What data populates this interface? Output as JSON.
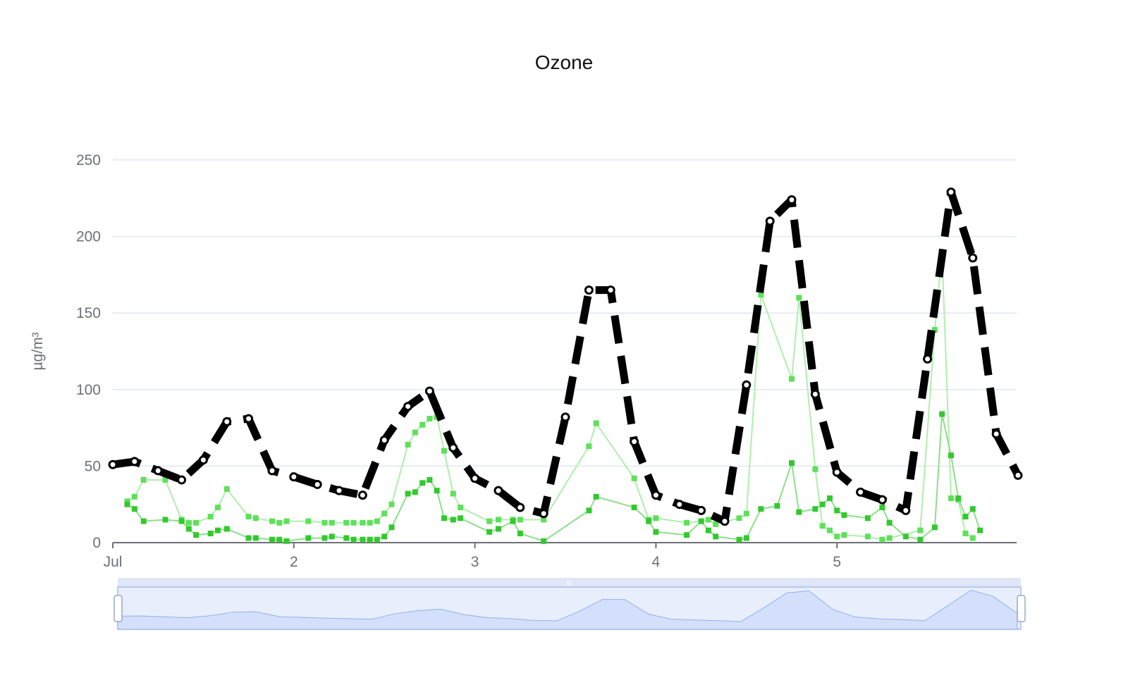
{
  "chart_data": {
    "type": "line",
    "title": "Ozone",
    "ylabel": "µg/m³",
    "xlabel": "",
    "ylim": [
      0,
      250
    ],
    "yticks": [
      0,
      50,
      100,
      150,
      200,
      250
    ],
    "xlim": [
      0,
      4.9
    ],
    "xticks": [
      {
        "x": 0,
        "label": "Jul"
      },
      {
        "x": 1,
        "label": "2"
      },
      {
        "x": 2,
        "label": "3"
      },
      {
        "x": 3,
        "label": "4"
      },
      {
        "x": 4,
        "label": "5"
      }
    ],
    "grid": true,
    "legend": "none",
    "zoom_slider": {
      "start_percent": 0,
      "end_percent": 100,
      "handle_glyph": "III"
    },
    "colors": {
      "main_line": "#000000",
      "series_light": "#aef0ab",
      "marker_light": "#5ee05a",
      "series_dark": "#8ce08a",
      "marker_dark": "#33c92e",
      "grid": "#e0e6f1",
      "slider_fill": "#d4e0fb",
      "slider_border": "#a9bde6"
    },
    "series": [
      {
        "style": "thick-dashed-black",
        "points": [
          [
            0,
            51
          ],
          [
            0.12,
            53
          ],
          [
            0.25,
            47
          ],
          [
            0.38,
            41
          ],
          [
            0.5,
            54
          ],
          [
            0.63,
            79
          ],
          [
            0.75,
            81
          ],
          [
            0.88,
            47
          ],
          [
            1,
            43
          ],
          [
            1.13,
            38
          ],
          [
            1.25,
            34
          ],
          [
            1.38,
            31
          ],
          [
            1.5,
            67
          ],
          [
            1.63,
            89
          ],
          [
            1.75,
            99
          ],
          [
            1.88,
            62
          ],
          [
            2,
            42
          ],
          [
            2.13,
            34
          ],
          [
            2.25,
            23
          ],
          [
            2.38,
            19
          ],
          [
            2.5,
            82
          ],
          [
            2.63,
            165
          ],
          [
            2.75,
            165
          ],
          [
            2.88,
            66
          ],
          [
            3,
            31
          ],
          [
            3.13,
            25
          ],
          [
            3.25,
            21
          ],
          [
            3.38,
            14
          ],
          [
            3.5,
            103
          ],
          [
            3.63,
            210
          ],
          [
            3.75,
            224
          ],
          [
            3.88,
            97
          ],
          [
            4,
            46
          ],
          [
            4.13,
            33
          ],
          [
            4.25,
            28
          ],
          [
            4.38,
            21
          ],
          [
            4.5,
            120
          ],
          [
            4.63,
            229
          ],
          [
            4.75,
            186
          ],
          [
            4.88,
            71
          ],
          [
            5,
            44
          ]
        ]
      },
      {
        "style": "light-green",
        "points": [
          [
            0.08,
            27
          ],
          [
            0.12,
            30
          ],
          [
            0.17,
            41
          ],
          [
            0.29,
            41
          ],
          [
            0.38,
            15
          ],
          [
            0.42,
            13
          ],
          [
            0.46,
            13
          ],
          [
            0.54,
            17
          ],
          [
            0.58,
            23
          ],
          [
            0.63,
            35
          ],
          [
            0.75,
            17
          ],
          [
            0.79,
            16
          ],
          [
            0.88,
            14
          ],
          [
            0.92,
            13
          ],
          [
            0.96,
            14
          ],
          [
            1.08,
            14
          ],
          [
            1.17,
            13
          ],
          [
            1.21,
            13
          ],
          [
            1.29,
            13
          ],
          [
            1.33,
            13
          ],
          [
            1.38,
            13
          ],
          [
            1.42,
            13
          ],
          [
            1.46,
            14
          ],
          [
            1.5,
            19
          ],
          [
            1.54,
            25
          ],
          [
            1.63,
            64
          ],
          [
            1.67,
            72
          ],
          [
            1.71,
            77
          ],
          [
            1.75,
            81
          ],
          [
            1.79,
            82
          ],
          [
            1.83,
            60
          ],
          [
            1.88,
            32
          ],
          [
            1.92,
            23
          ],
          [
            2.08,
            14
          ],
          [
            2.13,
            15
          ],
          [
            2.21,
            15
          ],
          [
            2.25,
            15
          ],
          [
            2.38,
            15
          ],
          [
            2.63,
            63
          ],
          [
            2.67,
            78
          ],
          [
            2.88,
            42
          ],
          [
            2.96,
            15
          ],
          [
            3,
            16
          ],
          [
            3.17,
            13
          ],
          [
            3.25,
            14
          ],
          [
            3.29,
            15
          ],
          [
            3.33,
            12
          ],
          [
            3.46,
            16
          ],
          [
            3.5,
            19
          ],
          [
            3.58,
            162
          ],
          [
            3.75,
            107
          ],
          [
            3.79,
            160
          ],
          [
            3.88,
            48
          ],
          [
            3.92,
            11
          ],
          [
            3.96,
            8
          ],
          [
            4,
            4
          ],
          [
            4.04,
            5
          ],
          [
            4.17,
            4
          ],
          [
            4.25,
            2
          ],
          [
            4.29,
            3
          ],
          [
            4.46,
            8
          ],
          [
            4.54,
            139
          ],
          [
            4.58,
            190
          ],
          [
            4.63,
            29
          ],
          [
            4.67,
            28
          ],
          [
            4.71,
            6
          ],
          [
            4.75,
            3
          ]
        ]
      },
      {
        "style": "dark-green",
        "points": [
          [
            0.08,
            25
          ],
          [
            0.12,
            22
          ],
          [
            0.17,
            14
          ],
          [
            0.29,
            15
          ],
          [
            0.38,
            14
          ],
          [
            0.42,
            9
          ],
          [
            0.46,
            5
          ],
          [
            0.54,
            6
          ],
          [
            0.58,
            8
          ],
          [
            0.63,
            9
          ],
          [
            0.75,
            3
          ],
          [
            0.79,
            3
          ],
          [
            0.88,
            2
          ],
          [
            0.92,
            2
          ],
          [
            0.96,
            1
          ],
          [
            1.08,
            3
          ],
          [
            1.17,
            3
          ],
          [
            1.21,
            4
          ],
          [
            1.29,
            3
          ],
          [
            1.33,
            2
          ],
          [
            1.38,
            2
          ],
          [
            1.42,
            2
          ],
          [
            1.46,
            2
          ],
          [
            1.5,
            4
          ],
          [
            1.54,
            10
          ],
          [
            1.63,
            32
          ],
          [
            1.67,
            33
          ],
          [
            1.71,
            39
          ],
          [
            1.75,
            41
          ],
          [
            1.79,
            34
          ],
          [
            1.83,
            16
          ],
          [
            1.88,
            15
          ],
          [
            1.92,
            16
          ],
          [
            2.08,
            7
          ],
          [
            2.13,
            9
          ],
          [
            2.21,
            14
          ],
          [
            2.25,
            6
          ],
          [
            2.38,
            1
          ],
          [
            2.63,
            21
          ],
          [
            2.67,
            30
          ],
          [
            2.88,
            23
          ],
          [
            2.96,
            14
          ],
          [
            3,
            7
          ],
          [
            3.17,
            5
          ],
          [
            3.25,
            14
          ],
          [
            3.29,
            8
          ],
          [
            3.33,
            4
          ],
          [
            3.46,
            2
          ],
          [
            3.5,
            3
          ],
          [
            3.58,
            22
          ],
          [
            3.67,
            24
          ],
          [
            3.75,
            52
          ],
          [
            3.79,
            20
          ],
          [
            3.88,
            22
          ],
          [
            3.92,
            25
          ],
          [
            3.96,
            29
          ],
          [
            4,
            21
          ],
          [
            4.04,
            18
          ],
          [
            4.17,
            16
          ],
          [
            4.25,
            23
          ],
          [
            4.29,
            13
          ],
          [
            4.38,
            4
          ],
          [
            4.46,
            2
          ],
          [
            4.54,
            10
          ],
          [
            4.58,
            84
          ],
          [
            4.63,
            57
          ],
          [
            4.67,
            29
          ],
          [
            4.71,
            17
          ],
          [
            4.75,
            22
          ],
          [
            4.79,
            8
          ]
        ]
      }
    ]
  }
}
